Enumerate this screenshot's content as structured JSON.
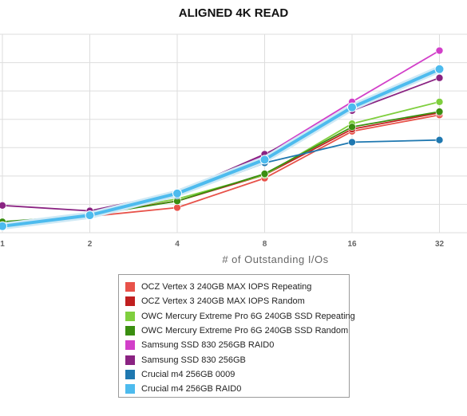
{
  "chart_data": {
    "type": "line",
    "title": "ALIGNED 4K READ",
    "xlabel": "# of Outstanding I/Os",
    "ylabel": "",
    "x": [
      1,
      2,
      4,
      8,
      16,
      32
    ],
    "x_scale": "log2",
    "x_tick_labels": [
      "1",
      "2",
      "4",
      "8",
      "16",
      "32"
    ],
    "y_tick_labels": [],
    "grid": true,
    "legend_position": "bottom",
    "series": [
      {
        "name": "OCZ Vertex 3 240GB MAX IOPS Repeating",
        "color": "#e8524a",
        "values": [
          5.7,
          15,
          23,
          50,
          93,
          108
        ]
      },
      {
        "name": "OCZ Vertex 3 240GB MAX IOPS Random",
        "color": "#c01f1f",
        "values": [
          6,
          17,
          29,
          53,
          95,
          110
        ]
      },
      {
        "name": "OWC Mercury Extreme Pro 6G 240GB SSD Repeating",
        "color": "#7fcf3e",
        "values": [
          9,
          17,
          31,
          53,
          100,
          120
        ]
      },
      {
        "name": "OWC Mercury Extreme Pro 6G 240GB SSD Random",
        "color": "#3a8e10",
        "values": [
          10,
          16,
          29,
          54,
          97,
          111
        ]
      },
      {
        "name": "Samsung SSD 830 256GB RAID0",
        "color": "#d23fc9",
        "values": [
          5.7,
          16,
          36,
          71,
          120,
          167
        ]
      },
      {
        "name": "Samsung SSD 830 256GB",
        "color": "#8a2382",
        "values": [
          25,
          20,
          37,
          72,
          112,
          142
        ]
      },
      {
        "name": "Crucial m4 256GB 0009",
        "color": "#1f78b0",
        "values": [
          6,
          17,
          34,
          64,
          83,
          85
        ]
      },
      {
        "name": "Crucial m4 256GB RAID0",
        "color": "#4dbbee",
        "values": [
          6,
          16,
          36,
          67,
          115,
          150
        ]
      }
    ],
    "legend": [
      {
        "label": "OCZ Vertex 3 240GB MAX IOPS Repeating",
        "color": "#e8524a"
      },
      {
        "label": "OCZ Vertex 3 240GB MAX IOPS Random",
        "color": "#c01f1f"
      },
      {
        "label": "OWC Mercury Extreme Pro 6G 240GB SSD Repeating",
        "color": "#7fcf3e"
      },
      {
        "label": "OWC Mercury Extreme Pro 6G 240GB SSD Random",
        "color": "#3a8e10"
      },
      {
        "label": "Samsung SSD 830 256GB RAID0",
        "color": "#d23fc9"
      },
      {
        "label": "Samsung SSD 830 256GB",
        "color": "#8a2382"
      },
      {
        "label": "Crucial m4 256GB 0009",
        "color": "#1f78b0"
      },
      {
        "label": "Crucial m4 256GB RAID0",
        "color": "#4dbbee"
      }
    ]
  }
}
